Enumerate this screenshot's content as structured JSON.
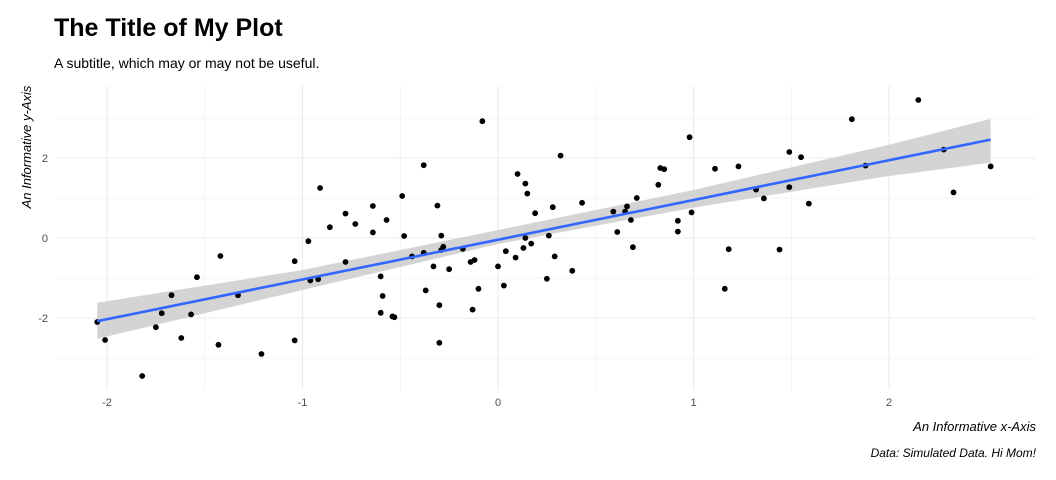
{
  "header": {
    "title": "The Title of My Plot",
    "subtitle": "A subtitle, which may or may not be useful.",
    "caption": "Data: Simulated Data. Hi Mom!"
  },
  "chart_data": {
    "type": "scatter",
    "xlabel": "An Informative x-Axis",
    "ylabel": "An Informative y-Axis",
    "xlim": [
      -2.2,
      2.6
    ],
    "ylim": [
      -3.7,
      3.8
    ],
    "x_ticks": [
      -2,
      -1,
      0,
      1,
      2
    ],
    "y_ticks": [
      -2,
      0,
      2
    ],
    "x_tick_labels": [
      "-2",
      "-1",
      "0",
      "1",
      "2"
    ],
    "y_tick_labels": [
      "-2",
      "0",
      "2"
    ],
    "grid": true,
    "colors": {
      "points": "#000000",
      "line": "#3366ff",
      "ribbon": "#cccccc",
      "grid": "#ebebeb"
    },
    "trend_line": {
      "method": "linear fit",
      "points": [
        {
          "x": -2.05,
          "y": -2.08
        },
        {
          "x": 2.52,
          "y": 2.46
        }
      ],
      "ribbon": [
        {
          "x": -2.05,
          "lower": -2.52,
          "upper": -1.62
        },
        {
          "x": -1.0,
          "lower": -1.3,
          "upper": -0.8
        },
        {
          "x": 0.0,
          "lower": -0.15,
          "upper": 0.2
        },
        {
          "x": 1.0,
          "lower": 0.76,
          "upper": 1.2
        },
        {
          "x": 2.0,
          "lower": 1.55,
          "upper": 2.33
        },
        {
          "x": 2.52,
          "lower": 1.88,
          "upper": 2.98
        }
      ]
    },
    "points": [
      {
        "x": -2.05,
        "y": -2.1
      },
      {
        "x": -2.01,
        "y": -2.55
      },
      {
        "x": -1.82,
        "y": -3.45
      },
      {
        "x": -1.75,
        "y": -2.23
      },
      {
        "x": -1.72,
        "y": -1.88
      },
      {
        "x": -1.67,
        "y": -1.43
      },
      {
        "x": -1.62,
        "y": -2.5
      },
      {
        "x": -1.57,
        "y": -1.91
      },
      {
        "x": -1.54,
        "y": -0.98
      },
      {
        "x": -1.43,
        "y": -2.67
      },
      {
        "x": -1.42,
        "y": -0.45
      },
      {
        "x": -1.33,
        "y": -1.43
      },
      {
        "x": -1.21,
        "y": -2.9
      },
      {
        "x": -1.04,
        "y": -2.56
      },
      {
        "x": -1.04,
        "y": -0.58
      },
      {
        "x": -0.97,
        "y": -0.08
      },
      {
        "x": -0.96,
        "y": -1.06
      },
      {
        "x": -0.92,
        "y": -1.03
      },
      {
        "x": -0.91,
        "y": 1.25
      },
      {
        "x": -0.86,
        "y": 0.27
      },
      {
        "x": -0.78,
        "y": 0.61
      },
      {
        "x": -0.78,
        "y": -0.6
      },
      {
        "x": -0.73,
        "y": 0.35
      },
      {
        "x": -0.64,
        "y": 0.8
      },
      {
        "x": -0.64,
        "y": 0.14
      },
      {
        "x": -0.6,
        "y": -0.96
      },
      {
        "x": -0.59,
        "y": -1.45
      },
      {
        "x": -0.6,
        "y": -1.87
      },
      {
        "x": -0.57,
        "y": 0.45
      },
      {
        "x": -0.54,
        "y": -1.96
      },
      {
        "x": -0.53,
        "y": -1.98
      },
      {
        "x": -0.49,
        "y": 1.05
      },
      {
        "x": -0.48,
        "y": 0.05
      },
      {
        "x": -0.44,
        "y": -0.46
      },
      {
        "x": -0.38,
        "y": -0.37
      },
      {
        "x": -0.38,
        "y": 1.82
      },
      {
        "x": -0.37,
        "y": -1.31
      },
      {
        "x": -0.33,
        "y": -0.71
      },
      {
        "x": -0.31,
        "y": 0.81
      },
      {
        "x": -0.3,
        "y": -2.62
      },
      {
        "x": -0.3,
        "y": -1.68
      },
      {
        "x": -0.29,
        "y": 0.06
      },
      {
        "x": -0.29,
        "y": -0.3
      },
      {
        "x": -0.28,
        "y": -0.22
      },
      {
        "x": -0.25,
        "y": -0.78
      },
      {
        "x": -0.18,
        "y": -0.27
      },
      {
        "x": -0.14,
        "y": -0.6
      },
      {
        "x": -0.13,
        "y": -1.79
      },
      {
        "x": -0.12,
        "y": -0.55
      },
      {
        "x": -0.1,
        "y": -1.27
      },
      {
        "x": -0.08,
        "y": 2.92
      },
      {
        "x": 0.0,
        "y": -0.71
      },
      {
        "x": 0.03,
        "y": -1.19
      },
      {
        "x": 0.04,
        "y": -0.33
      },
      {
        "x": 0.09,
        "y": -0.49
      },
      {
        "x": 0.1,
        "y": 1.6
      },
      {
        "x": 0.13,
        "y": -0.25
      },
      {
        "x": 0.14,
        "y": 0.0
      },
      {
        "x": 0.14,
        "y": 1.36
      },
      {
        "x": 0.15,
        "y": 1.11
      },
      {
        "x": 0.17,
        "y": -0.14
      },
      {
        "x": 0.19,
        "y": 0.62
      },
      {
        "x": 0.25,
        "y": -1.02
      },
      {
        "x": 0.26,
        "y": 0.06
      },
      {
        "x": 0.28,
        "y": 0.77
      },
      {
        "x": 0.29,
        "y": -0.46
      },
      {
        "x": 0.32,
        "y": 2.06
      },
      {
        "x": 0.38,
        "y": -0.82
      },
      {
        "x": 0.43,
        "y": 0.88
      },
      {
        "x": 0.59,
        "y": 0.66
      },
      {
        "x": 0.61,
        "y": 0.15
      },
      {
        "x": 0.65,
        "y": 0.66
      },
      {
        "x": 0.66,
        "y": 0.79
      },
      {
        "x": 0.68,
        "y": 0.45
      },
      {
        "x": 0.69,
        "y": -0.23
      },
      {
        "x": 0.71,
        "y": 1.0
      },
      {
        "x": 0.82,
        "y": 1.33
      },
      {
        "x": 0.83,
        "y": 1.75
      },
      {
        "x": 0.85,
        "y": 1.72
      },
      {
        "x": 0.92,
        "y": 0.16
      },
      {
        "x": 0.92,
        "y": 0.43
      },
      {
        "x": 0.98,
        "y": 2.52
      },
      {
        "x": 0.99,
        "y": 0.64
      },
      {
        "x": 1.11,
        "y": 1.73
      },
      {
        "x": 1.16,
        "y": -1.27
      },
      {
        "x": 1.18,
        "y": -0.28
      },
      {
        "x": 1.23,
        "y": 1.79
      },
      {
        "x": 1.32,
        "y": 1.21
      },
      {
        "x": 1.36,
        "y": 0.99
      },
      {
        "x": 1.44,
        "y": -0.29
      },
      {
        "x": 1.49,
        "y": 1.27
      },
      {
        "x": 1.49,
        "y": 2.15
      },
      {
        "x": 1.55,
        "y": 2.02
      },
      {
        "x": 1.59,
        "y": 0.86
      },
      {
        "x": 1.81,
        "y": 2.97
      },
      {
        "x": 1.88,
        "y": 1.81
      },
      {
        "x": 2.15,
        "y": 3.45
      },
      {
        "x": 2.28,
        "y": 2.21
      },
      {
        "x": 2.33,
        "y": 1.14
      },
      {
        "x": 2.52,
        "y": 1.79
      }
    ]
  }
}
